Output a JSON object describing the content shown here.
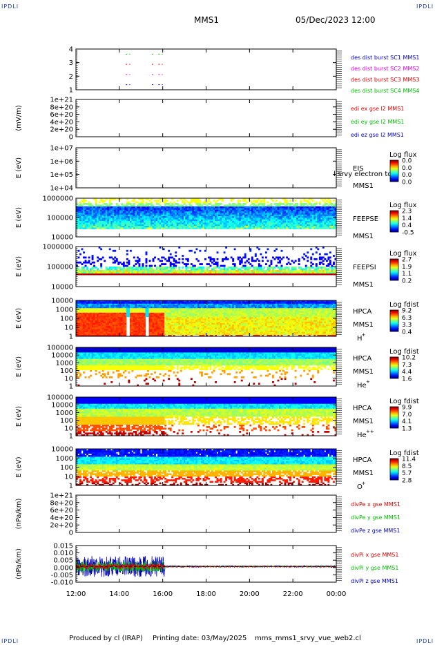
{
  "header": {
    "corner_left": "IPDLI",
    "corner_right": "IPDLI",
    "spacecraft": "MMS1",
    "datetime": "05/Dec/2023 12:00"
  },
  "footer": {
    "produced_by": "Produced by cl (IRAP)",
    "printing_date": "Printing date: 03/May/2025",
    "script_name": "mms_mms1_srvy_vue_web2.cl",
    "corner_left": "IPDLI",
    "corner_right": "IPDLI"
  },
  "time_axis": {
    "ticks": [
      "12:00",
      "14:00",
      "16:00",
      "18:00",
      "20:00",
      "22:00",
      "00:00"
    ],
    "start_hour": 12,
    "end_hour": 24
  },
  "colors": {
    "axis": "#000000",
    "red": "#dd0000",
    "green": "#00bb00",
    "blue": "#0000bb",
    "magenta": "#dd00dd"
  },
  "chart_data": [
    {
      "type": "scatter",
      "ylabel": "",
      "yticks": [
        "4",
        "3",
        "2",
        "1"
      ],
      "ylim": [
        0.5,
        4.5
      ],
      "legend": [
        {
          "text": "des dist burst SC1 MMS1",
          "color": "#0000bb"
        },
        {
          "text": "des dist burst SC2 MMS2",
          "color": "#dd00dd"
        },
        {
          "text": "des dist burst SC3 MMS3",
          "color": "#dd0000"
        },
        {
          "text": "des dist burst SC4 MMS4",
          "color": "#00bb00"
        }
      ],
      "series": [
        {
          "name": "SC4",
          "y": 4,
          "color": "#00bb00",
          "segments": [
            [
              14.3,
              14.5
            ],
            [
              15.5,
              15.6
            ],
            [
              15.8,
              16.0
            ]
          ]
        },
        {
          "name": "SC3",
          "y": 3,
          "color": "#dd0000",
          "segments": [
            [
              14.3,
              14.5
            ],
            [
              15.5,
              15.6
            ],
            [
              15.8,
              16.0
            ]
          ]
        },
        {
          "name": "SC2",
          "y": 2,
          "color": "#dd00dd",
          "segments": [
            [
              14.3,
              14.5
            ],
            [
              15.5,
              15.6
            ],
            [
              15.8,
              16.0
            ]
          ]
        },
        {
          "name": "SC1",
          "y": 1,
          "color": "#0000bb",
          "segments": [
            [
              14.3,
              14.5
            ],
            [
              15.5,
              15.6
            ],
            [
              15.8,
              16.0
            ]
          ]
        }
      ]
    },
    {
      "type": "line",
      "ylabel": "(mV/m)",
      "yticks": [
        "1e+21",
        "8e+20",
        "6e+20",
        "4e+20",
        "2e+20",
        "0"
      ],
      "ylim": [
        0,
        1e+21
      ],
      "zero_line": true,
      "legend": [
        {
          "text": "edi ex gse l2 MMS1",
          "color": "#dd0000"
        },
        {
          "text": "edi ey gse l2 MMS1",
          "color": "#00bb00"
        },
        {
          "text": "edi ez gse l2 MMS1",
          "color": "#0000bb"
        }
      ],
      "series": []
    },
    {
      "type": "heatmap",
      "ylabel": "E (eV)",
      "yticks": [
        "1e+07",
        "1e+06",
        "1e+05",
        "1e+04"
      ],
      "log_y": true,
      "ylim": [
        10000,
        10000000
      ],
      "label_lines": [
        "EIS",
        "MMS1"
      ],
      "overlay_text": "l srvy electron to",
      "colorbar": {
        "title": "Log flux",
        "ticks": [
          "0.0",
          "0.0",
          "0.0",
          "0.0"
        ]
      },
      "empty": true
    },
    {
      "type": "heatmap",
      "ylabel": "E (eV)",
      "yticks": [
        "1000000",
        "100000",
        "10000"
      ],
      "log_y": true,
      "ylim": [
        10000,
        1000000
      ],
      "label_lines": [
        "FEEPSE",
        "MMS1"
      ],
      "colorbar": {
        "title": "Log flux",
        "ticks": [
          "2.3",
          "1.4",
          "0.4",
          "-0.5"
        ]
      },
      "pattern": "feepse"
    },
    {
      "type": "heatmap",
      "ylabel": "E (eV)",
      "yticks": [
        "1000000",
        "100000",
        "10000"
      ],
      "log_y": true,
      "ylim": [
        10000,
        1000000
      ],
      "label_lines": [
        "FEEPSI",
        "MMS1"
      ],
      "colorbar": {
        "title": "Log flux",
        "ticks": [
          "2.7",
          "1.9",
          "1.1",
          "0.2"
        ]
      },
      "pattern": "feepsi"
    },
    {
      "type": "heatmap",
      "ylabel": "E (eV)",
      "yticks": [
        "10000",
        "1000",
        "100",
        "10",
        "1"
      ],
      "log_y": true,
      "ylim": [
        1,
        40000
      ],
      "label_lines": [
        "HPCA",
        "MMS1"
      ],
      "species": "H",
      "species_sup": "+",
      "colorbar": {
        "title": "Log fdist",
        "ticks": [
          "9.2",
          "6.3",
          "3.3",
          "0.4"
        ]
      },
      "pattern": "hplus"
    },
    {
      "type": "heatmap",
      "ylabel": "E (eV)",
      "yticks": [
        "100000",
        "10000",
        "1000",
        "100",
        "10",
        "1"
      ],
      "log_y": true,
      "ylim": [
        1,
        100000
      ],
      "label_lines": [
        "HPCA",
        "MMS1"
      ],
      "species": "He",
      "species_sup": "+",
      "colorbar": {
        "title": "Log fdist",
        "ticks": [
          "10.2",
          "7.3",
          "4.4",
          "1.6"
        ]
      },
      "pattern": "heplus"
    },
    {
      "type": "heatmap",
      "ylabel": "E (eV)",
      "yticks": [
        "100000",
        "10000",
        "1000",
        "100",
        "10",
        "1"
      ],
      "log_y": true,
      "ylim": [
        1,
        100000
      ],
      "label_lines": [
        "HPCA",
        "MMS1"
      ],
      "species": "He",
      "species_sup": "++",
      "colorbar": {
        "title": "Log fdist",
        "ticks": [
          "9.9",
          "7.0",
          "4.1",
          "1.3"
        ]
      },
      "pattern": "heplusplus"
    },
    {
      "type": "heatmap",
      "ylabel": "E (eV)",
      "yticks": [
        "10000",
        "1000",
        "100",
        "10",
        "1"
      ],
      "log_y": true,
      "ylim": [
        1,
        40000
      ],
      "label_lines": [
        "HPCA",
        "MMS1"
      ],
      "species": "O",
      "species_sup": "+",
      "colorbar": {
        "title": "Log fdist",
        "ticks": [
          "11.4",
          "8.5",
          "5.7",
          "2.8"
        ]
      },
      "pattern": "oplus"
    },
    {
      "type": "line",
      "ylabel": "(nPa/km)",
      "yticks": [
        "1e+21",
        "8e+20",
        "6e+20",
        "4e+20",
        "2e+20",
        "0"
      ],
      "ylim": [
        0,
        1e+21
      ],
      "zero_line": true,
      "legend": [
        {
          "text": "divPe x gse MMS1",
          "color": "#dd0000"
        },
        {
          "text": "divPe y gse MMS1",
          "color": "#00bb00"
        },
        {
          "text": "divPe z gse MMS1",
          "color": "#0000bb"
        }
      ],
      "series": []
    },
    {
      "type": "line",
      "ylabel": "(nPa/km)",
      "yticks": [
        "0.015",
        "0.010",
        "0.005",
        "0.000",
        "-0.005",
        "-0.010"
      ],
      "ylim": [
        -0.012,
        0.016
      ],
      "zero_line": true,
      "legend": [
        {
          "text": "divPi x gse MMS1",
          "color": "#dd0000"
        },
        {
          "text": "divPi y gse MMS1",
          "color": "#00bb00"
        },
        {
          "text": "divPi z gse MMS1",
          "color": "#0000bb"
        }
      ],
      "series": [
        {
          "name": "divPi z gse MMS1",
          "color": "#0000bb",
          "noisy_until": 16.1,
          "amplitude": 0.008,
          "late_amplitude": 0.0006
        },
        {
          "name": "divPi y gse MMS1",
          "color": "#00bb00",
          "noisy_until": 16.1,
          "amplitude": 0.004,
          "late_amplitude": 0.0004
        },
        {
          "name": "divPi x gse MMS1",
          "color": "#dd0000",
          "noisy_until": 16.1,
          "amplitude": 0.002,
          "late_amplitude": 0.0003
        }
      ]
    }
  ]
}
